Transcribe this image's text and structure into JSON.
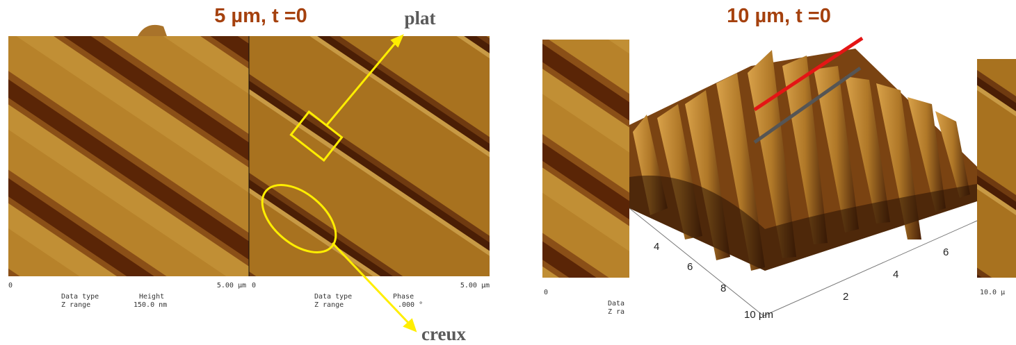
{
  "left_figure": {
    "title": "5 µm, t =0",
    "panels": [
      {
        "axis_start": "0",
        "axis_end": "5.00 µm",
        "data_type_label": "Data type",
        "data_type": "Height",
        "z_range_label": "Z range",
        "z_range": "150.0 nm"
      },
      {
        "axis_start": "0",
        "axis_end": "5.00 µm",
        "data_type_label": "Data type",
        "data_type": "Phase",
        "z_range_label": "Z range",
        "z_range": ".000 °"
      }
    ],
    "annotations": [
      "plat",
      "creux"
    ]
  },
  "right_figure": {
    "title": "10 µm, t =0",
    "left_panel": {
      "axis_start": "0",
      "data_type_label": "Data",
      "z_range_label": "Z ra"
    },
    "right_panel": {
      "axis_end": "10.0 µ"
    },
    "plot3d": {
      "front_axis_labels": [
        "4",
        "6",
        "8",
        "10 µm"
      ],
      "right_axis_labels": [
        "6",
        "4",
        "2"
      ]
    }
  }
}
